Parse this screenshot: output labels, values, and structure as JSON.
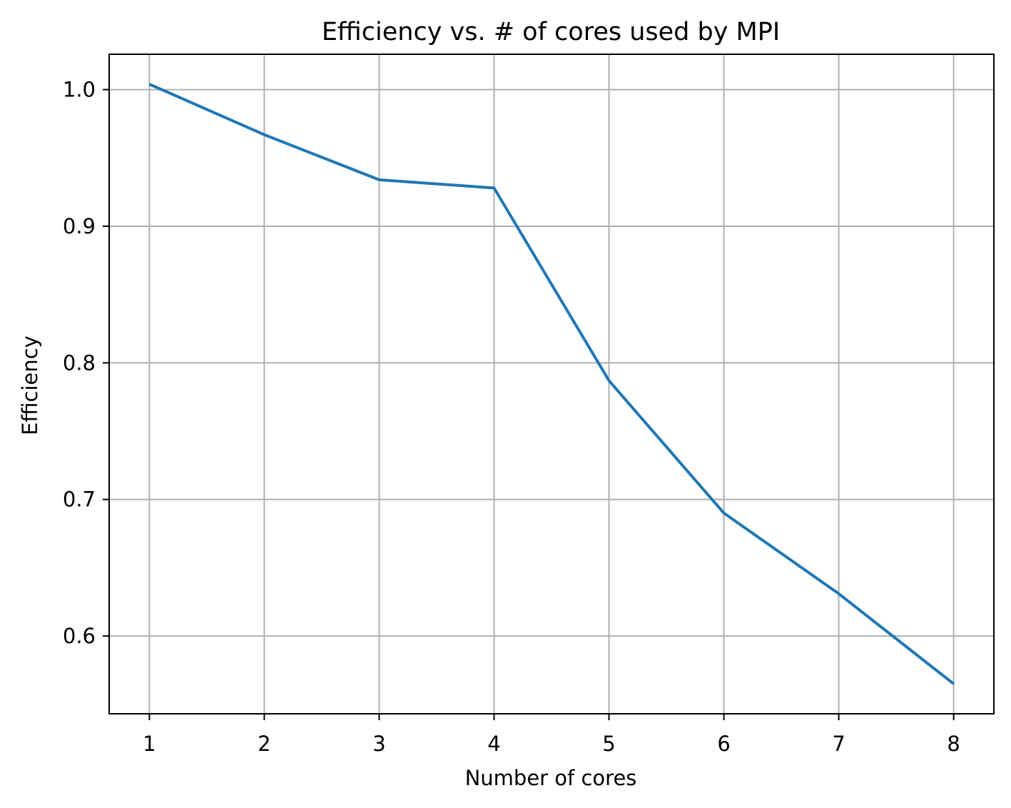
{
  "chart_data": {
    "type": "line",
    "title": "Efficiency vs. # of cores used by MPI",
    "xlabel": "Number of cores",
    "ylabel": "Efficiency",
    "x": [
      1,
      2,
      3,
      4,
      5,
      6,
      7,
      8
    ],
    "series": [
      {
        "values": [
          1.004,
          0.967,
          0.934,
          0.928,
          0.787,
          0.69,
          0.631,
          0.565
        ],
        "color": "#1f77b4"
      }
    ],
    "xticks": [
      1,
      2,
      3,
      4,
      5,
      6,
      7,
      8
    ],
    "xtick_labels": [
      "1",
      "2",
      "3",
      "4",
      "5",
      "6",
      "7",
      "8"
    ],
    "yticks": [
      0.6,
      0.7,
      0.8,
      0.9,
      1.0
    ],
    "ytick_labels": [
      "0.6",
      "0.7",
      "0.8",
      "0.9",
      "1.0"
    ],
    "xlim": [
      0.65,
      8.35
    ],
    "ylim": [
      0.5431,
      1.0259
    ],
    "grid": true,
    "legend": "none"
  }
}
